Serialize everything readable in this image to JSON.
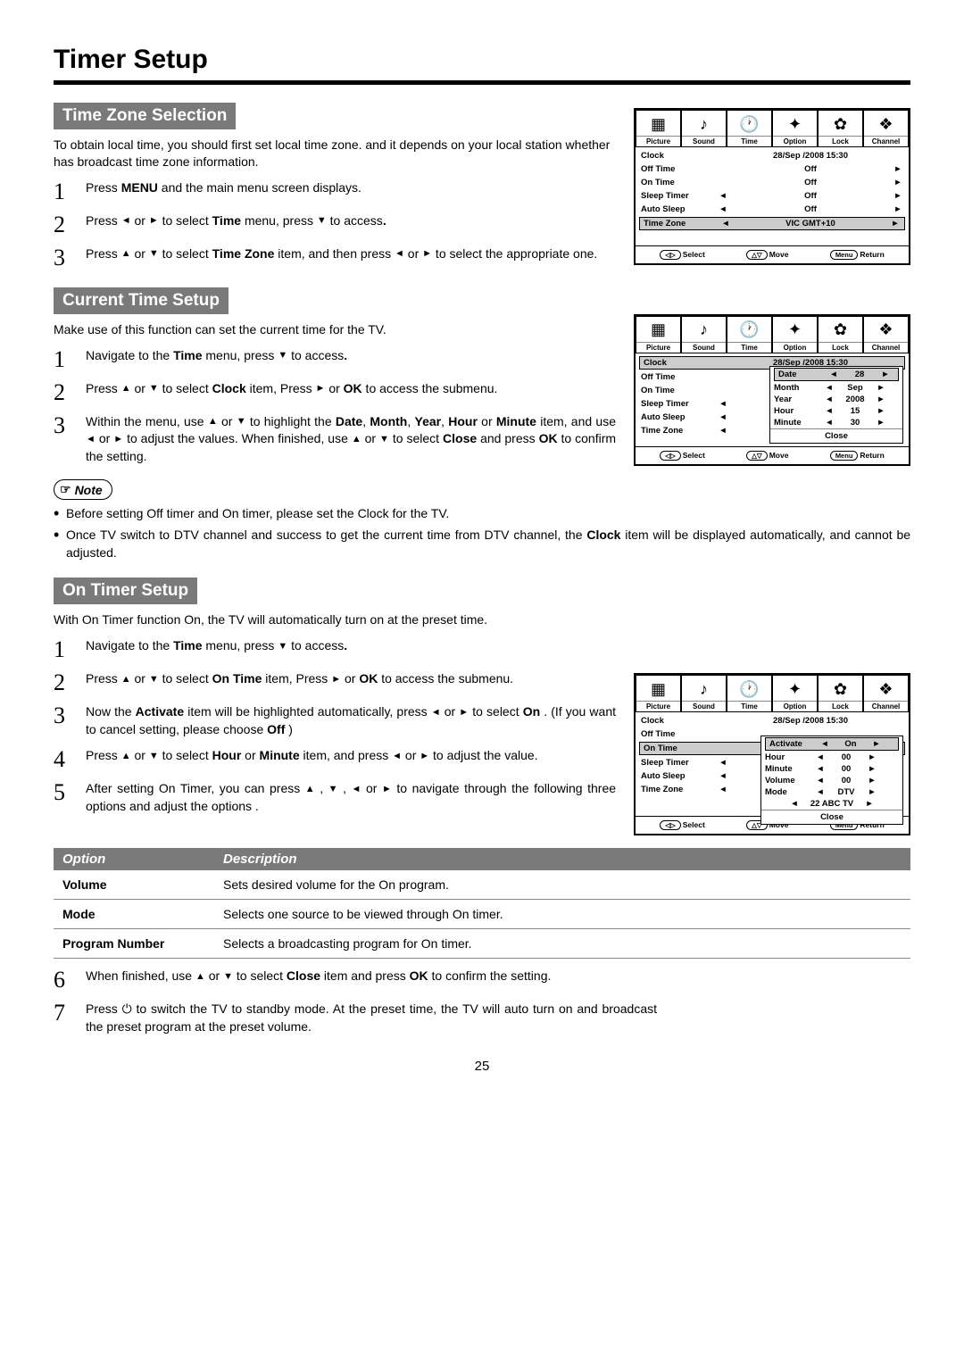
{
  "page_title": "Timer Setup",
  "page_number": "25",
  "arrows": {
    "left": "◄",
    "right": "►",
    "up": "▲",
    "down": "▼"
  },
  "tz": {
    "header": "Time Zone Selection",
    "intro": "To obtain local time, you should first set local time zone. and it depends on your local station whether has broadcast time zone information.",
    "steps": {
      "s1": {
        "num": "1",
        "prefix": "Press ",
        "b1": "MENU",
        "suffix": " and the main menu screen displays."
      },
      "s2": {
        "num": "2",
        "p1": "Press ",
        "p2": " or ",
        "p3": " to select ",
        "b1": "Time",
        "p4": " menu,  press ",
        "p5": " to access",
        "dot": "."
      },
      "s3": {
        "num": "3",
        "p1": "Press ",
        "p2": " or ",
        "p3": " to select ",
        "b1": "Time Zone",
        "p4": " item, and then press ",
        "p5": " or ",
        "p6": " to select the appropriate one."
      }
    }
  },
  "ct": {
    "header": "Current Time Setup",
    "intro": "Make use of this function can set the current time for the TV.",
    "steps": {
      "s1": {
        "num": "1",
        "p1": "Navigate to the ",
        "b1": "Time",
        "p2": " menu,  press ",
        "p3": " to access",
        "dot": "."
      },
      "s2": {
        "num": "2",
        "p1": "Press ",
        "p2": " or ",
        "p3": " to select ",
        "b1": "Clock",
        "p4": " item, Press ",
        "p5": " or ",
        "b2": "OK",
        "p6": " to access the submenu."
      },
      "s3": {
        "num": "3",
        "p1": "Within the menu, use ",
        "p2": " or ",
        "p3": " to highlight the ",
        "b1": "Date",
        "c": ", ",
        "b2": "Month",
        "b3": "Year",
        "b4": "Hour",
        "or": " or ",
        "b5": "Minute",
        "p4": " item, and use ",
        "p5": " or ",
        "p6": " to adjust the values. When finished, use ",
        "p7": " or ",
        "p8": " to select ",
        "b6": "Close",
        "p9": " and press ",
        "b7": "OK",
        "p10": " to confirm the setting."
      }
    },
    "note_label": "Note",
    "notes": {
      "n1": "Before setting Off timer and On timer, please set the Clock for the TV.",
      "n2_a": "Once TV switch to DTV channel and success to get the current time from DTV channel, the ",
      "n2_b": "Clock",
      "n2_c": " item will be displayed automatically, and cannot be adjusted."
    }
  },
  "ot": {
    "header": "On Timer Setup",
    "intro": "With On Timer function On, the TV will automatically turn on at the preset time.",
    "steps": {
      "s1": {
        "num": "1",
        "p1": "Navigate to the ",
        "b1": "Time",
        "p2": " menu,  press ",
        "p3": " to access",
        "dot": "."
      },
      "s2": {
        "num": "2",
        "p1": "Press ",
        "p2": " or ",
        "p3": " to select ",
        "b1": "On Time",
        "p4": " item, Press ",
        "p5": " or ",
        "b2": "OK",
        "p6": " to access the submenu."
      },
      "s3": {
        "num": "3",
        "p1": "Now the ",
        "b1": "Activate",
        "p2": " item will be highlighted automatically, press ",
        "p3": " or ",
        "p4": " to select ",
        "b2": "On",
        "p5": " . (If you want to cancel setting, please choose ",
        "b3": "Off",
        "p6": " )"
      },
      "s4": {
        "num": "4",
        "p1": "Press ",
        "p2": " or ",
        "p3": " to select ",
        "b1": "Hour",
        "or": " or ",
        "b2": "Minute",
        "p4": " item, and press ",
        "p5": " or ",
        "p6": " to adjust the value."
      },
      "s5": {
        "num": "5",
        "p1": "After setting On Timer, you can press ",
        "c": " , ",
        "p2": " or ",
        "p3": " to navigate through the following three options and adjust the options ."
      },
      "s6": {
        "num": "6",
        "p1": "When finished, use ",
        "p2": " or ",
        "p3": " to select ",
        "b1": "Close",
        "p4": " item and press ",
        "b2": "OK",
        "p5": " to confirm the setting."
      },
      "s7": {
        "num": "7",
        "p1": "Press ",
        "pwr": "⏻",
        "p2": " to switch the TV to standby mode. At the preset time, the TV will auto turn on and broadcast the preset program at the preset volume."
      }
    }
  },
  "opts": {
    "col1": "Option",
    "col2": "Description",
    "rows": [
      {
        "opt": "Volume",
        "desc": "Sets desired volume for the On program."
      },
      {
        "opt": "Mode",
        "desc": "Selects one source to be viewed through On timer."
      },
      {
        "opt": "Program Number",
        "desc": "Selects a broadcasting program for On timer."
      }
    ]
  },
  "osd": {
    "tabs": [
      {
        "label": "Picture",
        "icon": "▦"
      },
      {
        "label": "Sound",
        "icon": "♪"
      },
      {
        "label": "Time",
        "icon": "🕐"
      },
      {
        "label": "Option",
        "icon": "✦"
      },
      {
        "label": "Lock",
        "icon": "✿"
      },
      {
        "label": "Channel",
        "icon": "❖"
      }
    ],
    "footer": {
      "select": "Select",
      "move": "Move",
      "menu": "Menu",
      "return": "Return",
      "sym1": "◁▷",
      "sym2": "△▽"
    },
    "m1": {
      "clock_label": "Clock",
      "clock_val": "28/Sep  /2008 15:30",
      "offtime_label": "Off Time",
      "offtime_val": "Off",
      "ontime_label": "On Time",
      "ontime_val": "Off",
      "sleep_label": "Sleep Timer",
      "sleep_val": "Off",
      "auto_label": "Auto Sleep",
      "auto_val": "Off",
      "tz_label": "Time Zone",
      "tz_val": "VIC GMT+10"
    },
    "m2": {
      "clock_label": "Clock",
      "clock_val": "28/Sep  /2008 15:30",
      "offtime_label": "Off Time",
      "ontime_label": "On Time",
      "sleep_label": "Sleep Timer",
      "auto_label": "Auto Sleep",
      "tz_label": "Time Zone",
      "sub": [
        {
          "label": "Date",
          "val": "28"
        },
        {
          "label": "Month",
          "val": "Sep"
        },
        {
          "label": "Year",
          "val": "2008"
        },
        {
          "label": "Hour",
          "val": "15"
        },
        {
          "label": "Minute",
          "val": "30"
        }
      ],
      "close": "Close"
    },
    "m3": {
      "clock_label": "Clock",
      "clock_val": "28/Sep  /2008 15:30",
      "offtime_label": "Off Time",
      "ontime_label": "On Time",
      "sleep_label": "Sleep Timer",
      "auto_label": "Auto Sleep",
      "tz_label": "Time Zone",
      "sub": [
        {
          "label": "Activate",
          "val": "On"
        },
        {
          "label": "Hour",
          "val": "00"
        },
        {
          "label": "Minute",
          "val": "00"
        },
        {
          "label": "Volume",
          "val": "00"
        },
        {
          "label": "Mode",
          "val": "DTV"
        }
      ],
      "channel": "22 ABC TV",
      "close": "Close"
    }
  }
}
